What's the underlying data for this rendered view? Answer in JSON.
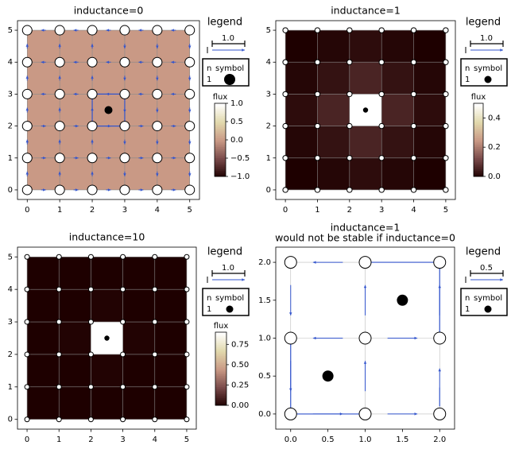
{
  "chart_data": [
    {
      "type": "heatmap",
      "title": "inductance=0",
      "grid_size": 5,
      "xlim": [
        -0.3,
        5.3
      ],
      "ylim": [
        -0.3,
        5.3
      ],
      "xticks": [
        "0",
        "1",
        "2",
        "3",
        "4",
        "5"
      ],
      "yticks": [
        "0",
        "1",
        "2",
        "3",
        "4",
        "5"
      ],
      "flux_cells": [
        [
          0,
          0,
          0,
          0,
          0
        ],
        [
          0,
          0,
          0,
          0,
          0
        ],
        [
          0,
          0,
          0,
          0,
          0
        ],
        [
          0,
          0,
          0,
          0,
          0
        ],
        [
          0,
          0,
          0,
          0,
          0
        ]
      ],
      "node_style": "large",
      "current_loop": true,
      "symbols": [
        {
          "x": 2.5,
          "y": 2.5,
          "n": 1
        }
      ],
      "legend": {
        "title": "legend",
        "scale_label": "1.0",
        "row_header_n": "n",
        "row_header_symbol": "symbol",
        "row_n": "1",
        "symbol_size": "large"
      },
      "colorbar": {
        "label": "flux",
        "ticks": [
          "1.0",
          "0.5",
          "0.0",
          "−0.5",
          "−1.0"
        ],
        "range": [
          -1,
          1
        ],
        "colormap": "pink"
      }
    },
    {
      "type": "heatmap",
      "title": "inductance=1",
      "grid_size": 5,
      "xlim": [
        -0.3,
        5.3
      ],
      "ylim": [
        -0.3,
        5.3
      ],
      "xticks": [
        "0",
        "1",
        "2",
        "3",
        "4",
        "5"
      ],
      "yticks": [
        "0",
        "1",
        "2",
        "3",
        "4",
        "5"
      ],
      "flux_cells": [
        [
          0.0,
          0.01,
          0.02,
          0.01,
          0.0
        ],
        [
          0.01,
          0.03,
          0.06,
          0.03,
          0.01
        ],
        [
          0.02,
          0.06,
          0.5,
          0.06,
          0.02
        ],
        [
          0.01,
          0.03,
          0.06,
          0.03,
          0.01
        ],
        [
          0.0,
          0.01,
          0.02,
          0.01,
          0.0
        ]
      ],
      "node_style": "small",
      "current_loop": false,
      "symbols": [
        {
          "x": 2.5,
          "y": 2.5,
          "n": 1
        }
      ],
      "legend": {
        "title": "legend",
        "scale_label": "1.0",
        "row_header_n": "n",
        "row_header_symbol": "symbol",
        "row_n": "1",
        "symbol_size": "small"
      },
      "colorbar": {
        "label": "flux",
        "ticks": [
          "0.4",
          "0.2",
          "0.0"
        ],
        "range": [
          0,
          0.5
        ],
        "colormap": "pink"
      }
    },
    {
      "type": "heatmap",
      "title": "inductance=10",
      "grid_size": 5,
      "xlim": [
        -0.3,
        5.3
      ],
      "ylim": [
        -0.3,
        5.3
      ],
      "xticks": [
        "0",
        "1",
        "2",
        "3",
        "4",
        "5"
      ],
      "yticks": [
        "0",
        "1",
        "2",
        "3",
        "4",
        "5"
      ],
      "flux_cells": [
        [
          0.0,
          0.0,
          0.0,
          0.0,
          0.0
        ],
        [
          0.0,
          0.0,
          0.01,
          0.0,
          0.0
        ],
        [
          0.0,
          0.01,
          0.9,
          0.01,
          0.0
        ],
        [
          0.0,
          0.0,
          0.01,
          0.0,
          0.0
        ],
        [
          0.0,
          0.0,
          0.0,
          0.0,
          0.0
        ]
      ],
      "node_style": "small",
      "current_loop": false,
      "symbols": [
        {
          "x": 2.5,
          "y": 2.5,
          "n": 1
        }
      ],
      "legend": {
        "title": "legend",
        "scale_label": "1.0",
        "row_header_n": "n",
        "row_header_symbol": "symbol",
        "row_n": "1",
        "symbol_size": "small"
      },
      "colorbar": {
        "label": "flux",
        "ticks": [
          "0.75",
          "0.50",
          "0.25",
          "0.00"
        ],
        "range": [
          0,
          0.9
        ],
        "colormap": "pink"
      }
    },
    {
      "type": "heatmap",
      "title": "inductance=1",
      "subtitle": "would not be stable if inductance=0",
      "grid_size": 2,
      "xlim": [
        -0.2,
        2.2
      ],
      "ylim": [
        -0.2,
        2.2
      ],
      "xticks": [
        "0.0",
        "0.5",
        "1.0",
        "1.5",
        "2.0"
      ],
      "yticks": [
        "0.0",
        "0.5",
        "1.0",
        "1.5",
        "2.0"
      ],
      "flux_cells": [],
      "node_style": "large",
      "current_loop": false,
      "symbols": [
        {
          "x": 0.5,
          "y": 0.5,
          "n": 1
        },
        {
          "x": 1.5,
          "y": 1.5,
          "n": 1
        }
      ],
      "legend": {
        "title": "legend",
        "scale_label": "0.5",
        "row_header_n": "n",
        "row_header_symbol": "symbol",
        "row_n": "1",
        "symbol_size": "small"
      },
      "colorbar": null
    }
  ]
}
